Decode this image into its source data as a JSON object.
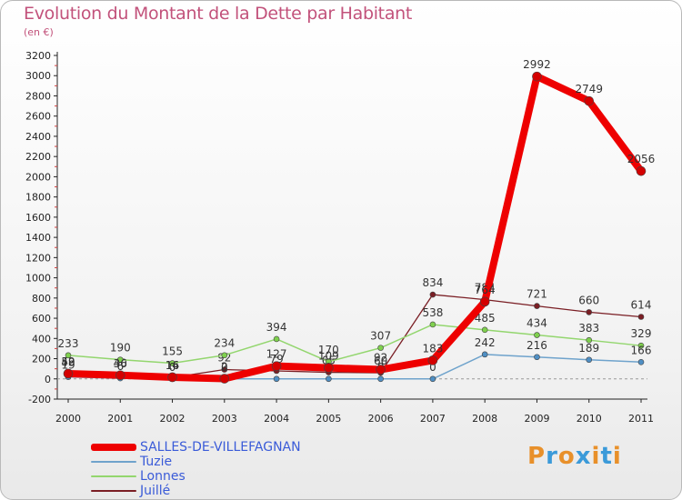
{
  "title": "Evolution du Montant de la Dette par Habitant",
  "unit": "(en €)",
  "logo": {
    "text": "Proxiti",
    "colors": [
      "#e8902a",
      "#3b9ad9",
      "#e8902a",
      "#3b9ad9",
      "#e8902a",
      "#3b9ad9",
      "#e8902a"
    ]
  },
  "chart_data": {
    "type": "line",
    "title": "Evolution du Montant de la Dette par Habitant",
    "ylabel": "(en €)",
    "xlabel": "",
    "x": [
      "2000",
      "2001",
      "2002",
      "2003",
      "2004",
      "2005",
      "2006",
      "2007",
      "2008",
      "2009",
      "2010",
      "2011"
    ],
    "ylim": [
      -200,
      3200
    ],
    "yticks": [
      -200,
      0,
      200,
      400,
      600,
      800,
      1000,
      1200,
      1400,
      1600,
      1800,
      2000,
      2200,
      2400,
      2600,
      2800,
      3000,
      3200
    ],
    "grid": false,
    "legend_position": "bottom-left",
    "series": [
      {
        "name": "Juillé",
        "color": "#7a1e24",
        "width": 1.3,
        "dot": "#7a1e24",
        "values": [
          49,
          40,
          14,
          92,
          79,
          65,
          60,
          834,
          784,
          721,
          660,
          614
        ],
        "labels": [
          "49",
          "40",
          "14",
          "92",
          "79",
          "65",
          "60",
          "834",
          "784",
          "721",
          "660",
          "614"
        ]
      },
      {
        "name": "Lonnes",
        "color": "#93d66e",
        "width": 1.5,
        "dot": "#7fd04e",
        "values": [
          233,
          190,
          155,
          234,
          394,
          170,
          307,
          538,
          485,
          434,
          383,
          329
        ],
        "labels": [
          "233",
          "190",
          "155",
          "234",
          "394",
          "170",
          "307",
          "538",
          "485",
          "434",
          "383",
          "329"
        ]
      },
      {
        "name": "Tuzie",
        "color": "#6fa3cc",
        "width": 1.5,
        "dot": "#4f8fc4",
        "values": [
          19,
          6,
          0,
          0,
          0,
          0,
          0,
          0,
          242,
          216,
          189,
          166
        ],
        "labels": [
          "19",
          "6",
          "0",
          "0",
          "0",
          "0",
          "0",
          "0",
          "242",
          "216",
          "189",
          "166"
        ]
      },
      {
        "name": "SALLES-DE-VILLEFAGNAN",
        "color": "#ee0000",
        "width": 8,
        "dot": "#d40000",
        "values": [
          52,
          36,
          16,
          2,
          127,
          109,
          92,
          183,
          764,
          2992,
          2749,
          2056
        ],
        "labels": [
          "52",
          "36",
          "16",
          "2",
          "127",
          "109",
          "92",
          "183",
          "764",
          "2992",
          "2749",
          "2056"
        ]
      }
    ]
  },
  "legend": [
    {
      "name": "SALLES-DE-VILLEFAGNAN",
      "color": "#ee0000",
      "h": 8
    },
    {
      "name": "Tuzie",
      "color": "#6fa3cc",
      "h": 2
    },
    {
      "name": "Lonnes",
      "color": "#93d66e",
      "h": 2
    },
    {
      "name": "Juillé",
      "color": "#7a1e24",
      "h": 2
    }
  ]
}
